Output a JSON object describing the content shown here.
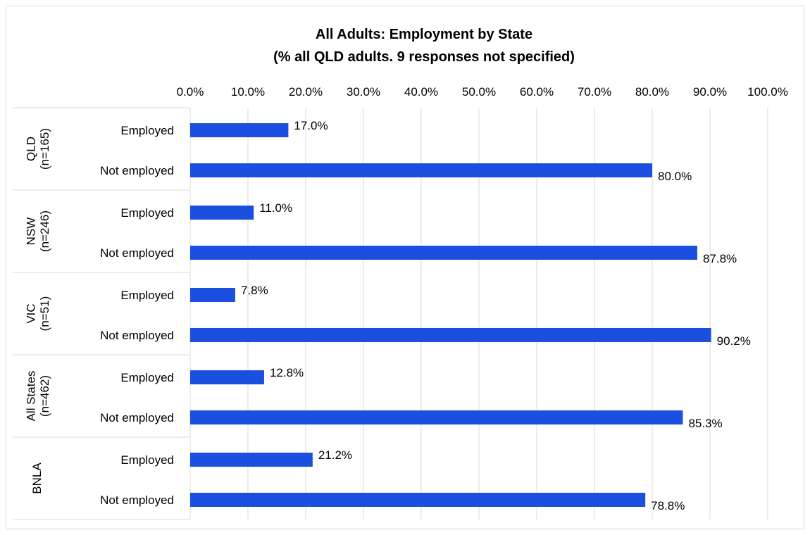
{
  "chart_data": {
    "type": "bar",
    "orientation": "horizontal",
    "title_line1": "All Adults: Employment by State",
    "title_line2": "(% all QLD adults. 9 responses not specified)",
    "xlim": [
      0,
      100
    ],
    "x_ticks": [
      "0.0%",
      "10.0%",
      "20.0%",
      "30.0%",
      "40.0%",
      "50.0%",
      "60.0%",
      "70.0%",
      "80.0%",
      "90.0%",
      "100.0%"
    ],
    "grid": "vertical",
    "bar_color": "#1a4fe0",
    "groups": [
      {
        "label_line1": "QLD",
        "label_line2": "(n=165)",
        "rows": [
          {
            "category": "Employed",
            "value": 17.0,
            "label": "17.0%"
          },
          {
            "category": "Not employed",
            "value": 80.0,
            "label": "80.0%"
          }
        ]
      },
      {
        "label_line1": "NSW",
        "label_line2": "(n=246)",
        "rows": [
          {
            "category": "Employed",
            "value": 11.0,
            "label": "11.0%"
          },
          {
            "category": "Not employed",
            "value": 87.8,
            "label": "87.8%"
          }
        ]
      },
      {
        "label_line1": "VIC",
        "label_line2": "(n=51)",
        "rows": [
          {
            "category": "Employed",
            "value": 7.8,
            "label": "7.8%"
          },
          {
            "category": "Not employed",
            "value": 90.2,
            "label": "90.2%"
          }
        ]
      },
      {
        "label_line1": "All States",
        "label_line2": "(n=462)",
        "rows": [
          {
            "category": "Employed",
            "value": 12.8,
            "label": "12.8%"
          },
          {
            "category": "Not employed",
            "value": 85.3,
            "label": "85.3%"
          }
        ]
      },
      {
        "label_line1": "BNLA",
        "label_line2": "",
        "rows": [
          {
            "category": "Employed",
            "value": 21.2,
            "label": "21.2%"
          },
          {
            "category": "Not employed",
            "value": 78.8,
            "label": "78.8%"
          }
        ]
      }
    ]
  }
}
